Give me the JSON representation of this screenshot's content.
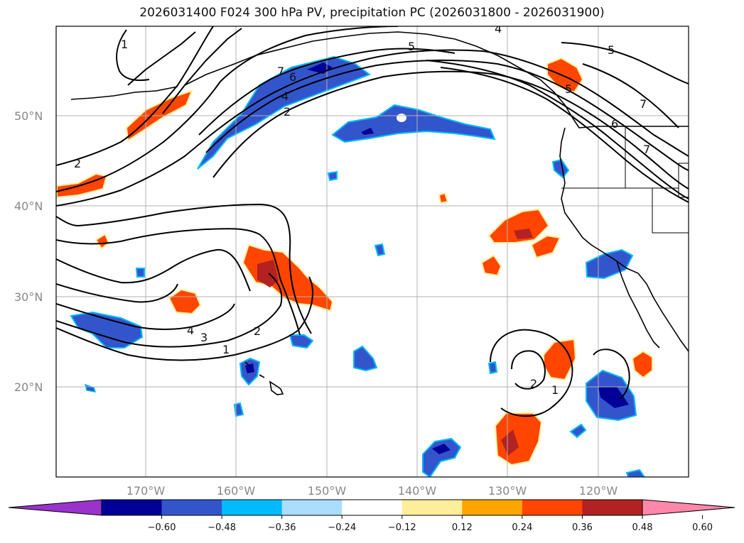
{
  "title": "2026031400 F024 300 hPa PV, precipitation PC (2026031800 - 2026031900)",
  "lat_labels": [
    "50°N",
    "40°N",
    "30°N",
    "20°N"
  ],
  "lon_labels": [
    "170°W",
    "160°W",
    "150°W",
    "140°W",
    "130°W",
    "120°W"
  ],
  "colorbar": {
    "ticks": [
      "−0.60",
      "−0.48",
      "−0.36",
      "−0.24",
      "−0.12",
      "0.12",
      "0.24",
      "0.36",
      "0.48",
      "0.60"
    ],
    "colors": [
      "#9933cc",
      "#000099",
      "#3355cc",
      "#00bbff",
      "#aaddff",
      "#ffffff",
      "#ffee99",
      "#ffa500",
      "#ff4500",
      "#b22222",
      "#ff88aa"
    ]
  },
  "contour_labels": {
    "c1_top": "1",
    "c2_left": "2",
    "c7_jet": "7",
    "c6_jet": "6",
    "c4_jet": "4",
    "c2_jet": "2",
    "c5_top": "5",
    "c4_topright": "4",
    "c5_right": "5",
    "c5_bc": "5",
    "c7_right": "7",
    "c6_right": "6",
    "c7_right2": "7",
    "c4_low": "4",
    "c3_low": "3",
    "c2_low": "2",
    "c1_low": "1",
    "c2_sub": "2",
    "c1_sub": "1"
  }
}
